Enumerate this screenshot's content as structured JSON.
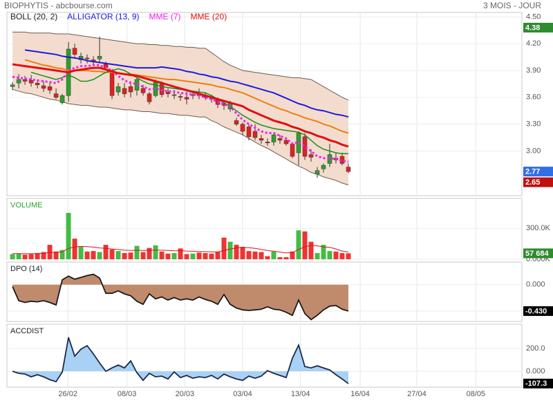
{
  "header": {
    "title": "BIOPHYTIS - abcbourse.com",
    "period": "3 MOIS - JOUR"
  },
  "chart_data": [
    {
      "type": "candlestick",
      "xlim": [
        -0.9,
        81.9
      ],
      "xticks": [
        {
          "value": 8.9,
          "label": "26/02"
        },
        {
          "value": 18.4,
          "label": "08/03"
        },
        {
          "value": 27.7,
          "label": "20/03"
        },
        {
          "value": 37,
          "label": "03/04"
        },
        {
          "value": 46.3,
          "label": "13/04"
        },
        {
          "value": 55.9,
          "label": "16/04"
        },
        {
          "value": 65,
          "label": "27/04"
        },
        {
          "value": 74.5,
          "label": "08/05"
        }
      ],
      "ylim": [
        2.5,
        4.55
      ],
      "yticks": [
        {
          "value": 4.5,
          "label": "4.50"
        },
        {
          "value": 4.2,
          "label": "4.20"
        },
        {
          "value": 3.9,
          "label": "3.90"
        },
        {
          "value": 3.6,
          "label": "3.60"
        },
        {
          "value": 3.3,
          "label": "3.30"
        },
        {
          "value": 3.0,
          "label": "3.00"
        }
      ],
      "up_color": "#2e9e2e",
      "down_color": "#dd2222",
      "open": [
        3.72,
        3.76,
        3.8,
        3.79,
        3.76,
        3.73,
        3.72,
        3.64,
        3.54,
        3.62,
        4.15,
        4.02,
        4.04,
        4.02,
        4.03,
        3.98,
        3.9,
        3.66,
        3.7,
        3.72,
        3.68,
        3.7,
        3.64,
        3.62,
        3.76,
        3.66,
        3.62,
        3.61,
        3.6,
        3.62,
        3.64,
        3.62,
        3.6,
        3.58,
        3.53,
        3.47,
        3.34,
        3.3,
        3.27,
        3.22,
        3.14,
        3.1,
        3.1,
        3.14,
        3.12,
        3.08,
        2.98,
        3.16,
        2.96,
        2.74,
        2.8,
        2.86,
        2.92,
        2.94,
        2.82
      ],
      "high": [
        3.77,
        3.86,
        3.84,
        3.85,
        3.8,
        3.78,
        3.76,
        3.7,
        3.64,
        4.22,
        4.2,
        4.1,
        4.08,
        4.06,
        4.28,
        4.0,
        3.92,
        3.76,
        3.76,
        3.78,
        3.82,
        3.74,
        3.66,
        3.8,
        3.78,
        3.7,
        3.68,
        3.64,
        3.66,
        3.66,
        3.7,
        3.66,
        3.63,
        3.6,
        3.56,
        3.56,
        3.37,
        3.32,
        3.3,
        3.3,
        3.18,
        3.14,
        3.2,
        3.18,
        3.14,
        3.1,
        3.22,
        3.2,
        3.02,
        2.82,
        2.86,
        3.08,
        2.98,
        2.98,
        2.86
      ],
      "low": [
        3.68,
        3.7,
        3.74,
        3.72,
        3.7,
        3.66,
        3.64,
        3.58,
        3.52,
        3.55,
        4.05,
        3.98,
        3.98,
        3.96,
        3.98,
        3.9,
        3.58,
        3.62,
        3.6,
        3.6,
        3.62,
        3.62,
        3.52,
        3.6,
        3.6,
        3.6,
        3.58,
        3.56,
        3.52,
        3.58,
        3.58,
        3.57,
        3.54,
        3.48,
        3.46,
        3.44,
        3.28,
        3.18,
        3.12,
        3.12,
        3.08,
        3.06,
        3.06,
        3.08,
        3.06,
        2.92,
        2.84,
        2.9,
        2.88,
        2.7,
        2.76,
        2.82,
        2.86,
        2.84,
        2.75
      ],
      "close": [
        3.74,
        3.8,
        3.78,
        3.76,
        3.74,
        3.7,
        3.68,
        3.6,
        3.62,
        4.14,
        4.08,
        4.06,
        4.03,
        4.0,
        4.06,
        3.93,
        3.62,
        3.72,
        3.64,
        3.66,
        3.8,
        3.65,
        3.55,
        3.77,
        3.63,
        3.64,
        3.63,
        3.6,
        3.58,
        3.63,
        3.62,
        3.6,
        3.58,
        3.52,
        3.51,
        3.54,
        3.3,
        3.22,
        3.16,
        3.15,
        3.12,
        3.09,
        3.18,
        3.12,
        3.08,
        2.94,
        3.2,
        2.94,
        2.93,
        2.78,
        2.84,
        2.96,
        2.9,
        2.86,
        2.77
      ],
      "band": {
        "name": "BOLL (20, 2)",
        "color": "#222222",
        "line_color": "#6b5a50",
        "fill": "#f3dccd",
        "upper": [
          4.33,
          4.33,
          4.33,
          4.32,
          4.32,
          4.32,
          4.32,
          4.31,
          4.31,
          4.31,
          4.3,
          4.29,
          4.28,
          4.27,
          4.26,
          4.25,
          4.24,
          4.23,
          4.22,
          4.21,
          4.2,
          4.2,
          4.19,
          4.19,
          4.18,
          4.18,
          4.17,
          4.17,
          4.16,
          4.16,
          4.15,
          4.15,
          4.1,
          4.05,
          4.0,
          3.96,
          3.93,
          3.9,
          3.89,
          3.88,
          3.87,
          3.86,
          3.85,
          3.84,
          3.83,
          3.82,
          3.82,
          3.81,
          3.8,
          3.76,
          3.72,
          3.68,
          3.64,
          3.6,
          3.57
        ],
        "lower": [
          3.69,
          3.67,
          3.65,
          3.64,
          3.62,
          3.6,
          3.58,
          3.57,
          3.55,
          3.53,
          3.52,
          3.51,
          3.51,
          3.5,
          3.49,
          3.49,
          3.48,
          3.47,
          3.46,
          3.46,
          3.45,
          3.44,
          3.44,
          3.43,
          3.42,
          3.42,
          3.41,
          3.4,
          3.4,
          3.39,
          3.38,
          3.38,
          3.34,
          3.31,
          3.27,
          3.24,
          3.21,
          3.18,
          3.14,
          3.1,
          3.06,
          3.03,
          2.99,
          2.95,
          2.91,
          2.87,
          2.83,
          2.8,
          2.76,
          2.74,
          2.71,
          2.69,
          2.67,
          2.64,
          2.62
        ]
      },
      "series": [
        {
          "name": "ALLIGATOR (13, 9)",
          "color": "#1a1ae0",
          "width": 2,
          "values": [
            null,
            null,
            4.13,
            4.12,
            4.11,
            4.1,
            4.09,
            4.08,
            4.06,
            4.05,
            4.04,
            4.03,
            4.01,
            4.0,
            3.99,
            3.98,
            3.97,
            3.96,
            3.95,
            3.94,
            3.93,
            3.93,
            3.93,
            3.93,
            3.94,
            3.93,
            3.92,
            3.91,
            3.89,
            3.88,
            3.86,
            3.85,
            3.83,
            3.82,
            3.8,
            3.78,
            3.77,
            3.75,
            3.73,
            3.71,
            3.69,
            3.67,
            3.65,
            3.62,
            3.59,
            3.56,
            3.53,
            3.51,
            3.48,
            3.46,
            3.45,
            3.43,
            3.41,
            3.4,
            3.38
          ]
        },
        {
          "color": "#f07d10",
          "width": 2,
          "values": [
            null,
            null,
            4.02,
            4.0,
            3.98,
            3.96,
            3.95,
            3.93,
            3.92,
            3.9,
            3.9,
            3.9,
            3.9,
            3.89,
            3.89,
            3.88,
            3.88,
            3.87,
            3.86,
            3.86,
            3.85,
            3.84,
            3.83,
            3.82,
            3.81,
            3.8,
            3.8,
            3.79,
            3.78,
            3.77,
            3.76,
            3.75,
            3.74,
            3.72,
            3.71,
            3.69,
            3.67,
            3.65,
            3.62,
            3.59,
            3.56,
            3.53,
            3.5,
            3.47,
            3.45,
            3.42,
            3.4,
            3.37,
            3.35,
            3.33,
            3.3,
            3.28,
            3.25,
            3.22,
            3.2
          ]
        },
        {
          "color": "#1e8c1e",
          "width": 1.5,
          "values": [
            null,
            null,
            null,
            3.88,
            3.86,
            3.84,
            3.82,
            3.8,
            3.82,
            3.85,
            3.82,
            3.78,
            3.78,
            3.8,
            3.84,
            3.88,
            3.9,
            3.92,
            3.9,
            3.86,
            3.82,
            3.78,
            3.75,
            3.74,
            3.72,
            3.71,
            3.7,
            3.69,
            3.68,
            3.67,
            3.66,
            3.65,
            3.62,
            3.58,
            3.54,
            3.5,
            3.45,
            3.4,
            3.36,
            3.32,
            3.29,
            3.27,
            3.25,
            3.24,
            3.23,
            3.22,
            3.21,
            3.18,
            3.12,
            3.06,
            3.02,
            3.0,
            2.98,
            2.97,
            2.97
          ]
        },
        {
          "name": "MME (7)",
          "color": "#ee22ee",
          "width": 3,
          "dashed": true,
          "values": [
            3.83,
            3.82,
            3.81,
            3.8,
            3.79,
            3.78,
            3.77,
            3.76,
            3.8,
            3.9,
            3.93,
            3.95,
            3.95,
            3.96,
            3.96,
            3.93,
            3.9,
            3.84,
            3.79,
            3.76,
            3.75,
            3.72,
            3.69,
            3.7,
            3.68,
            3.67,
            3.66,
            3.65,
            3.64,
            3.63,
            3.62,
            3.6,
            3.58,
            3.55,
            3.52,
            3.5,
            3.42,
            3.35,
            3.3,
            3.26,
            3.22,
            3.2,
            3.2,
            3.17,
            3.14,
            3.08,
            3.1,
            3.05,
            3.0,
            2.94,
            2.92,
            2.92,
            2.91,
            2.89,
            2.88
          ]
        },
        {
          "name": "MME (20)",
          "color": "#e01010",
          "width": 3,
          "values": [
            3.97,
            3.96,
            3.95,
            3.94,
            3.93,
            3.92,
            3.91,
            3.9,
            3.89,
            3.88,
            3.9,
            3.91,
            3.92,
            3.93,
            3.93,
            3.91,
            3.89,
            3.87,
            3.86,
            3.85,
            3.84,
            3.82,
            3.8,
            3.78,
            3.76,
            3.74,
            3.72,
            3.7,
            3.68,
            3.66,
            3.64,
            3.62,
            3.6,
            3.58,
            3.56,
            3.54,
            3.52,
            3.5,
            3.46,
            3.43,
            3.4,
            3.37,
            3.34,
            3.32,
            3.3,
            3.27,
            3.25,
            3.22,
            3.2,
            3.17,
            3.15,
            3.12,
            3.1,
            3.07,
            3.05
          ]
        }
      ],
      "badges": [
        {
          "value": 4.38,
          "color": "#2e8b2e"
        },
        {
          "value": 2.77,
          "color": "#2f6fe8"
        },
        {
          "value": 2.65,
          "color": "#c01010"
        }
      ]
    },
    {
      "type": "bar",
      "title": "VOLUME",
      "title_color": "#2e9e2e",
      "ylim": [
        0,
        590000
      ],
      "yticks": [
        {
          "value": 300000,
          "label": "300.0K"
        },
        {
          "value": 0,
          "label": "0.000K"
        }
      ],
      "up_color": "#44bb44",
      "down_color": "#ee3333",
      "values": [
        50000,
        55000,
        45000,
        50000,
        60000,
        70000,
        140000,
        75000,
        90000,
        450000,
        200000,
        120000,
        75000,
        80000,
        70000,
        140000,
        95000,
        80000,
        60000,
        65000,
        130000,
        70000,
        110000,
        135000,
        75000,
        55000,
        60000,
        105000,
        50000,
        55000,
        65000,
        60000,
        55000,
        75000,
        210000,
        170000,
        140000,
        120000,
        80000,
        75000,
        70000,
        30000,
        75000,
        20000,
        20000,
        75000,
        280000,
        270000,
        170000,
        60000,
        140000,
        80000,
        75000,
        60000,
        57684
      ],
      "average": {
        "color": "#dd1111",
        "values": [
          55000,
          55000,
          54000,
          54000,
          55000,
          57000,
          65000,
          67000,
          72000,
          105000,
          120000,
          125000,
          122000,
          118000,
          110000,
          105000,
          100000,
          95000,
          88000,
          85000,
          88000,
          85000,
          86000,
          90000,
          88000,
          85000,
          82000,
          84000,
          80000,
          78000,
          76000,
          74000,
          72000,
          70000,
          85000,
          100000,
          110000,
          115000,
          112000,
          105000,
          95000,
          85000,
          78000,
          70000,
          62000,
          65000,
          95000,
          120000,
          135000,
          130000,
          120000,
          115000,
          100000,
          80000,
          70000
        ]
      },
      "badges": [
        {
          "value": 57684,
          "label": "57 684",
          "color": "#2e8b2e"
        }
      ]
    },
    {
      "type": "area",
      "title": "DPO (14)",
      "title_color": "#222222",
      "ylim": [
        -0.6,
        0.37
      ],
      "yticks": [
        {
          "value": 0,
          "label": "0.000"
        },
        {
          "value": -0.43,
          "label": "-0.430"
        }
      ],
      "color": "#1a1a1a",
      "fill": "#c08a6c",
      "values": [
        -0.03,
        -0.26,
        -0.29,
        -0.27,
        -0.28,
        -0.26,
        -0.29,
        -0.33,
        0.08,
        0.14,
        0.09,
        0.12,
        0.15,
        0.17,
        0.11,
        -0.14,
        -0.14,
        -0.1,
        -0.15,
        -0.18,
        -0.27,
        -0.32,
        -0.15,
        -0.23,
        -0.2,
        -0.25,
        -0.21,
        -0.25,
        -0.23,
        -0.25,
        -0.2,
        -0.24,
        -0.27,
        -0.32,
        -0.16,
        -0.32,
        -0.38,
        -0.41,
        -0.42,
        -0.41,
        -0.4,
        -0.36,
        -0.4,
        -0.41,
        -0.45,
        -0.5,
        -0.25,
        -0.47,
        -0.57,
        -0.5,
        -0.41,
        -0.35,
        -0.34,
        -0.4,
        -0.43
      ],
      "badges": [
        {
          "value": -0.43,
          "label": "-0.430",
          "color": "#000000"
        }
      ]
    },
    {
      "type": "area",
      "title": "ACCDIST",
      "title_color": "#222222",
      "ylim": [
        -139,
        412
      ],
      "yticks": [
        {
          "value": 200,
          "label": "200.0"
        },
        {
          "value": 0,
          "label": "0.000"
        }
      ],
      "color": "#1b2a48",
      "fill": "#a9d1f5",
      "values": [
        0,
        -18,
        -24,
        -48,
        -30,
        -48,
        -73,
        -91,
        -6,
        297,
        133,
        194,
        224,
        152,
        73,
        0,
        30,
        55,
        30,
        91,
        -12,
        -79,
        -18,
        -48,
        -42,
        -67,
        -6,
        -55,
        -36,
        -61,
        -48,
        -55,
        -36,
        -67,
        -24,
        -48,
        -67,
        -79,
        -42,
        -61,
        -42,
        6,
        -18,
        -36,
        -55,
        115,
        230,
        42,
        30,
        48,
        30,
        12,
        -30,
        -67,
        -107.3
      ],
      "badges": [
        {
          "value": -107.3,
          "color": "#000000"
        }
      ]
    }
  ]
}
